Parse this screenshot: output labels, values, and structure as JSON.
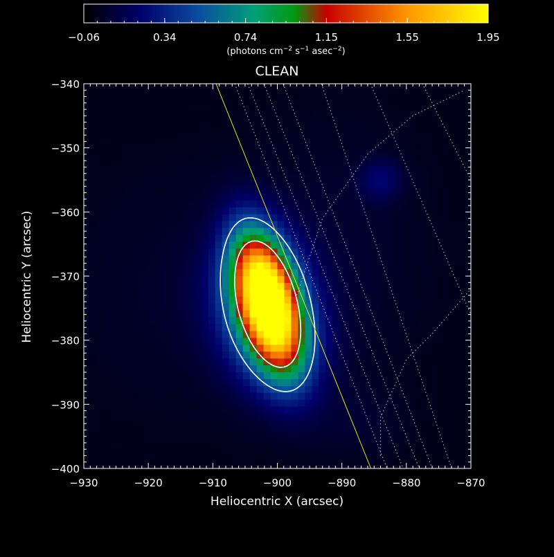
{
  "chart_data": {
    "type": "heatmap",
    "title": "CLEAN",
    "xlabel": "Heliocentric X (arcsec)",
    "ylabel": "Heliocentric Y (arcsec)",
    "xlim": [
      -930,
      -870
    ],
    "ylim": [
      -400,
      -340
    ],
    "x_ticks": [
      "−930",
      "−920",
      "−910",
      "−900",
      "−890",
      "−880",
      "−870"
    ],
    "y_ticks": [
      "−340",
      "−350",
      "−360",
      "−370",
      "−380",
      "−390",
      "−400"
    ],
    "colorbar": {
      "range": [
        -0.06,
        1.95
      ],
      "ticks": [
        "−0.06",
        "0.34",
        "0.74",
        "1.15",
        "1.55",
        "1.95"
      ],
      "label_parts": [
        "(photons cm",
        "−2",
        " s",
        "−1",
        " asec",
        "−2",
        ")"
      ],
      "colors": [
        "#000000",
        "#00006a",
        "#0a4aa0",
        "#00a078",
        "#009a10",
        "#c80000",
        "#ff9600",
        "#ffff00"
      ]
    },
    "sources": [
      {
        "x": -901.5,
        "y": -374,
        "peak": 1.95,
        "sx": 3.4,
        "sy": 7.0,
        "rho": -0.45
      },
      {
        "x": -901,
        "y": -378.5,
        "peak": 0.55,
        "sx": 5.5,
        "sy": 7.0,
        "rho": -0.15
      },
      {
        "x": -903,
        "y": -370,
        "peak": 0.3,
        "sx": 5.0,
        "sy": 6.0,
        "rho": 0
      },
      {
        "x": -884,
        "y": -355,
        "peak": 0.2,
        "sx": 2.3,
        "sy": 2.3,
        "rho": 0
      },
      {
        "x": -890,
        "y": -365,
        "peak": 0.06,
        "sx": 10,
        "sy": 14,
        "rho": 0
      },
      {
        "x": -887,
        "y": -393,
        "peak": 0.06,
        "sx": 5,
        "sy": 4,
        "rho": 0
      },
      {
        "x": -915,
        "y": -372,
        "peak": 0.05,
        "sx": 12,
        "sy": 14,
        "rho": 0
      }
    ],
    "contour_levels": [
      0.5,
      1.1
    ],
    "limb_line": [
      [
        -909.5,
        -340
      ],
      [
        -885.5,
        -400
      ]
    ]
  }
}
